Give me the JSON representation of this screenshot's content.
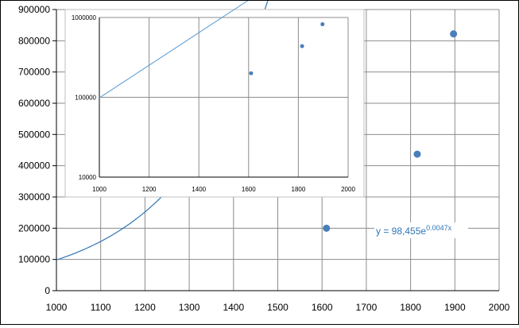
{
  "chart_data": [
    {
      "type": "scatter",
      "title": "",
      "xlabel": "",
      "ylabel": "",
      "xlim": [
        1000,
        2000
      ],
      "ylim": [
        0,
        900000
      ],
      "x_ticks": [
        "1000",
        "1100",
        "1200",
        "1300",
        "1400",
        "1500",
        "1600",
        "1700",
        "1800",
        "1900",
        "2000"
      ],
      "y_ticks": [
        "0",
        "100000",
        "200000",
        "300000",
        "400000",
        "500000",
        "600000",
        "700000",
        "800000",
        "900000"
      ],
      "grid": true,
      "series": [
        {
          "points": [
            {
              "x": 1610,
              "y": 200000
            },
            {
              "x": 1815,
              "y": 437000
            },
            {
              "x": 1897,
              "y": 822000
            }
          ],
          "color": "#4a7ebb"
        }
      ],
      "trendline": {
        "type": "exponential",
        "a": 98455,
        "b": 0.0047,
        "x_range": [
          1000,
          1897
        ],
        "label": "y = 98,455e",
        "label_exp": "0.0047x",
        "color": "#2e75b6"
      }
    },
    {
      "type": "scatter",
      "title": "",
      "xlabel": "",
      "ylabel": "",
      "xlim": [
        1000,
        2000
      ],
      "ylim": [
        10000,
        1000000
      ],
      "y_scale": "log",
      "x_ticks": [
        "1000",
        "1200",
        "1400",
        "1600",
        "1800",
        "2000"
      ],
      "y_ticks": [
        "10000",
        "100000",
        "1000000"
      ],
      "grid": true,
      "series": [
        {
          "points": [
            {
              "x": 1610,
              "y": 200000
            },
            {
              "x": 1815,
              "y": 437000
            },
            {
              "x": 1897,
              "y": 822000
            }
          ],
          "color": "#4a7ebb"
        }
      ],
      "trendline": {
        "type": "exponential",
        "a": 98455,
        "b": 0.0047,
        "x_range": [
          1000,
          1897
        ],
        "color": "#5b9bd5"
      }
    }
  ]
}
